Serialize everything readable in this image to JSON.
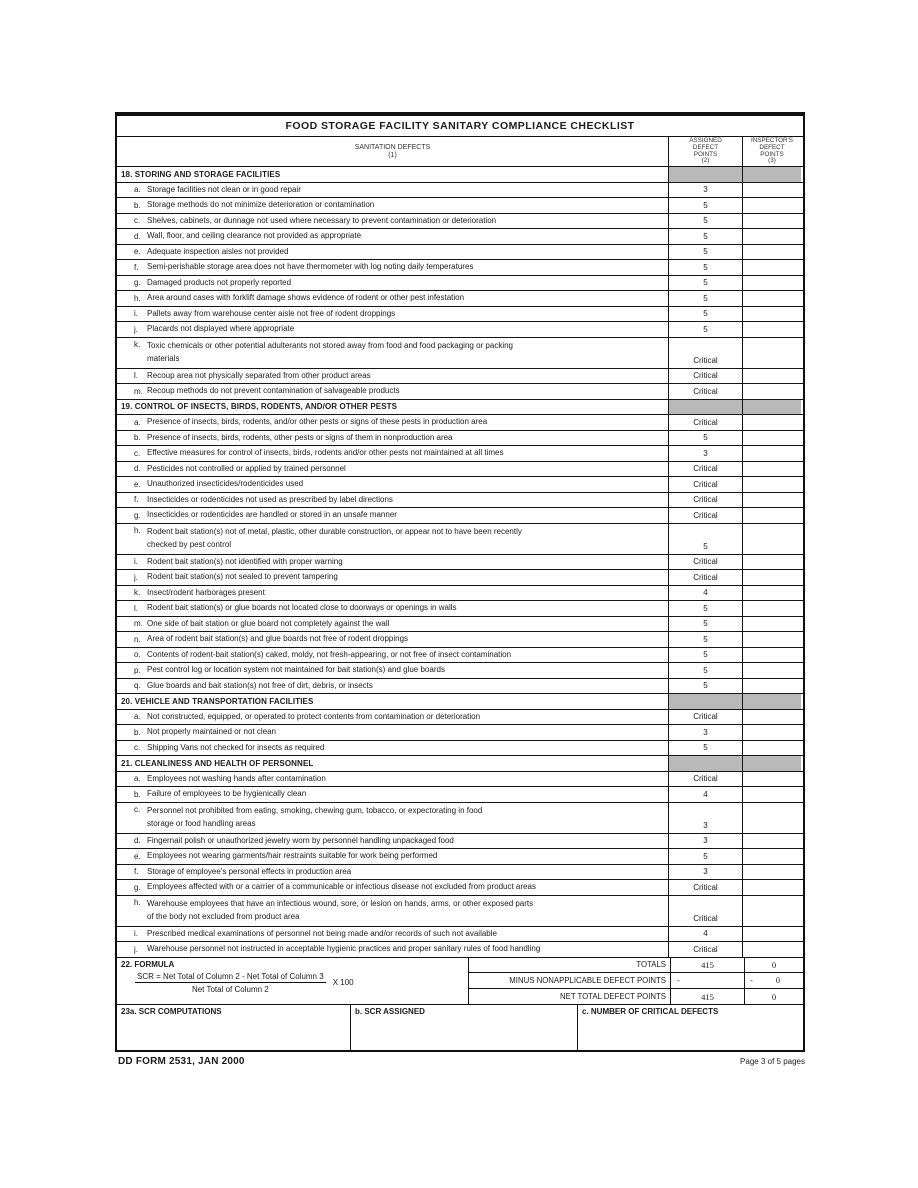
{
  "form": {
    "title": "FOOD STORAGE FACILITY SANITARY COMPLIANCE CHECKLIST",
    "header": {
      "col1_label": "SANITATION DEFECTS",
      "col1_num": "(1)",
      "col2_label": "ASSIGNED\nDEFECT\nPOINTS\n(2)",
      "col3_label": "INSPECTOR'S\nDEFECT\nPOINTS\n(3)"
    },
    "sections": [
      {
        "number": "18.",
        "title": "18. STORING AND STORAGE FACILITIES",
        "items": [
          {
            "letter": "a.",
            "text": "Storage facilities not clean or in good repair",
            "points": "3",
            "inspector": "",
            "lines": 1
          },
          {
            "letter": "b.",
            "text": "Storage methods do not minimize deterioration or contamination",
            "points": "5",
            "inspector": "",
            "lines": 1
          },
          {
            "letter": "c.",
            "text": "Shelves, cabinets, or dunnage not used where necessary to prevent contamination or deterioration",
            "points": "5",
            "inspector": "",
            "lines": 1
          },
          {
            "letter": "d.",
            "text": "Wall, floor, and ceiling clearance not provided as appropriate",
            "points": "5",
            "inspector": "",
            "lines": 1
          },
          {
            "letter": "e.",
            "text": "Adequate inspection aisles not provided",
            "points": "5",
            "inspector": "",
            "lines": 1
          },
          {
            "letter": "f.",
            "text": "Semi-perishable storage area does not have thermometer with log noting daily temperatures",
            "points": "5",
            "inspector": "",
            "lines": 1
          },
          {
            "letter": "g.",
            "text": "Damaged products not properly reported",
            "points": "5",
            "inspector": "",
            "lines": 1
          },
          {
            "letter": "h.",
            "text": "Area around cases with forklift damage shows evidence of rodent or other pest infestation",
            "points": "5",
            "inspector": "",
            "lines": 1
          },
          {
            "letter": "i.",
            "text": "Pallets away from warehouse center aisle not free of rodent droppings",
            "points": "5",
            "inspector": "",
            "lines": 1
          },
          {
            "letter": "j.",
            "text": "Placards not displayed where appropriate",
            "points": "5",
            "inspector": "",
            "lines": 1
          },
          {
            "letter": "k.",
            "text": "Toxic chemicals or other potential adulterants not stored away from food and food packaging or packing\nmaterials",
            "points": "Critical",
            "inspector": "",
            "lines": 2
          },
          {
            "letter": "l.",
            "text": "Recoup area not physically separated from other product areas",
            "points": "Critical",
            "inspector": "",
            "lines": 1
          },
          {
            "letter": "m.",
            "text": "Recoup methods do not prevent contamination of salvageable products",
            "points": "Critical",
            "inspector": "",
            "lines": 1
          }
        ]
      },
      {
        "number": "19.",
        "title": "19. CONTROL OF INSECTS, BIRDS, RODENTS, AND/OR OTHER PESTS",
        "items": [
          {
            "letter": "a.",
            "text": "Presence of insects, birds, rodents, and/or other pests or signs of these pests in production area",
            "points": "Critical",
            "inspector": "",
            "lines": 1
          },
          {
            "letter": "b.",
            "text": "Presence of insects, birds, rodents, other pests or signs of them in nonproduction area",
            "points": "5",
            "inspector": "",
            "lines": 1
          },
          {
            "letter": "c.",
            "text": "Effective measures for control of insects, birds, rodents and/or other pests not maintained at all times",
            "points": "3",
            "inspector": "",
            "lines": 1
          },
          {
            "letter": "d.",
            "text": "Pesticides not controlled or applied by trained personnel",
            "points": "Critical",
            "inspector": "",
            "lines": 1
          },
          {
            "letter": "e.",
            "text": "Unauthorized insecticides/rodenticides used",
            "points": "Critical",
            "inspector": "",
            "lines": 1
          },
          {
            "letter": "f.",
            "text": "Insecticides or rodenticides not used as prescribed by label directions",
            "points": "Critical",
            "inspector": "",
            "lines": 1
          },
          {
            "letter": "g.",
            "text": "Insecticides or rodenticides are handled or stored in an unsafe manner",
            "points": "Critical",
            "inspector": "",
            "lines": 1
          },
          {
            "letter": "h.",
            "text": "Rodent bait station(s) not of metal, plastic, other durable construction, or appear not to have been recently\nchecked by pest control",
            "points": "5",
            "inspector": "",
            "lines": 2
          },
          {
            "letter": "i.",
            "text": "Rodent bait station(s) not identified with proper warning",
            "points": "Critical",
            "inspector": "",
            "lines": 1
          },
          {
            "letter": "j.",
            "text": "Rodent bait station(s) not sealed to prevent tampering",
            "points": "Critical",
            "inspector": "",
            "lines": 1
          },
          {
            "letter": "k.",
            "text": "Insect/rodent harborages present",
            "points": "4",
            "inspector": "",
            "lines": 1
          },
          {
            "letter": "l.",
            "text": "Rodent bait station(s) or glue boards not located close to doorways or openings in walls",
            "points": "5",
            "inspector": "",
            "lines": 1
          },
          {
            "letter": "m.",
            "text": "One side of bait station or glue board not completely against the wall",
            "points": "5",
            "inspector": "",
            "lines": 1
          },
          {
            "letter": "n.",
            "text": "Area of rodent bait station(s) and glue boards not free of rodent droppings",
            "points": "5",
            "inspector": "",
            "lines": 1
          },
          {
            "letter": "o.",
            "text": "Contents of rodent-bait station(s) caked, moldy, not fresh-appearing, or not free of insect contamination",
            "points": "5",
            "inspector": "",
            "lines": 1
          },
          {
            "letter": "p.",
            "text": "Pest control log or location system not maintained for bait station(s) and glue boards",
            "points": "5",
            "inspector": "",
            "lines": 1
          },
          {
            "letter": "q.",
            "text": "Glue boards and bait station(s) not free of dirt, debris, or insects",
            "points": "5",
            "inspector": "",
            "lines": 1
          }
        ]
      },
      {
        "number": "20.",
        "title": "20. VEHICLE AND TRANSPORTATION FACILITIES",
        "items": [
          {
            "letter": "a.",
            "text": "Not constructed, equipped, or operated to protect contents from contamination or deterioration",
            "points": "Critical",
            "inspector": "",
            "lines": 1
          },
          {
            "letter": "b.",
            "text": "Not properly maintained or not clean",
            "points": "3",
            "inspector": "",
            "lines": 1
          },
          {
            "letter": "c.",
            "text": "Shipping Vans not checked for insects as required",
            "points": "5",
            "inspector": "",
            "lines": 1
          }
        ]
      },
      {
        "number": "21.",
        "title": "21. CLEANLINESS AND HEALTH OF PERSONNEL",
        "items": [
          {
            "letter": "a.",
            "text": "Employees not washing hands after contamination",
            "points": "Critical",
            "inspector": "",
            "lines": 1
          },
          {
            "letter": "b.",
            "text": "Failure of employees to be hygienically clean",
            "points": "4",
            "inspector": "",
            "lines": 1
          },
          {
            "letter": "c.",
            "text": "Personnel not prohibited from eating, smoking, chewing gum, tobacco, or expectorating in food\nstorage or food handling areas",
            "points": "3",
            "inspector": "",
            "lines": 2
          },
          {
            "letter": "d.",
            "text": "Fingernail polish or unauthorized jewelry worn by personnel handling unpackaged food",
            "points": "3",
            "inspector": "",
            "lines": 1
          },
          {
            "letter": "e.",
            "text": "Employees not wearing garments/hair restraints suitable for work being performed",
            "points": "5",
            "inspector": "",
            "lines": 1
          },
          {
            "letter": "f.",
            "text": "Storage of employee's personal effects in production area",
            "points": "3",
            "inspector": "",
            "lines": 1
          },
          {
            "letter": "g.",
            "text": "Employees affected with or a carrier of a communicable or infectious disease not excluded from product areas",
            "points": "Critical",
            "inspector": "",
            "lines": 1
          },
          {
            "letter": "h.",
            "text": "Warehouse employees that have an infectious wound, sore, or lesion on hands, arms, or other exposed parts\nof the body not excluded from product area",
            "points": "Critical",
            "inspector": "",
            "lines": 2
          },
          {
            "letter": "i.",
            "text": "Prescribed medical examinations of personnel not being made and/or records of such not available",
            "points": "4",
            "inspector": "",
            "lines": 1
          },
          {
            "letter": "j.",
            "text": "Warehouse personnel not instructed in acceptable hygienic practices and proper sanitary rules of food handling",
            "points": "Critical",
            "inspector": "",
            "lines": 1
          }
        ]
      }
    ],
    "formula": {
      "label": "22. FORMULA",
      "numerator": "SCR = Net Total of Column 2 - Net Total of Column 3",
      "denominator": "Net Total of Column 2",
      "multiplier": "X 100",
      "totals": [
        {
          "label": "TOTALS",
          "assigned": "415",
          "assigned_dash": false,
          "inspector": "0",
          "inspector_dash": ""
        },
        {
          "label": "MINUS NONAPPLICABLE DEFECT POINTS",
          "assigned": "-",
          "assigned_dash": true,
          "inspector": "0",
          "inspector_dash": "-"
        },
        {
          "label": "NET TOTAL DEFECT POINTS",
          "assigned": "415",
          "assigned_dash": false,
          "inspector": "0",
          "inspector_dash": ""
        }
      ]
    },
    "computations": {
      "a_label": "23a. SCR COMPUTATIONS",
      "b_label": "b. SCR ASSIGNED",
      "c_label": "c.  NUMBER OF CRITICAL DEFECTS"
    },
    "footer": {
      "left": "DD FORM 2531, JAN 2000",
      "right": "Page 3 of 5 pages"
    }
  }
}
